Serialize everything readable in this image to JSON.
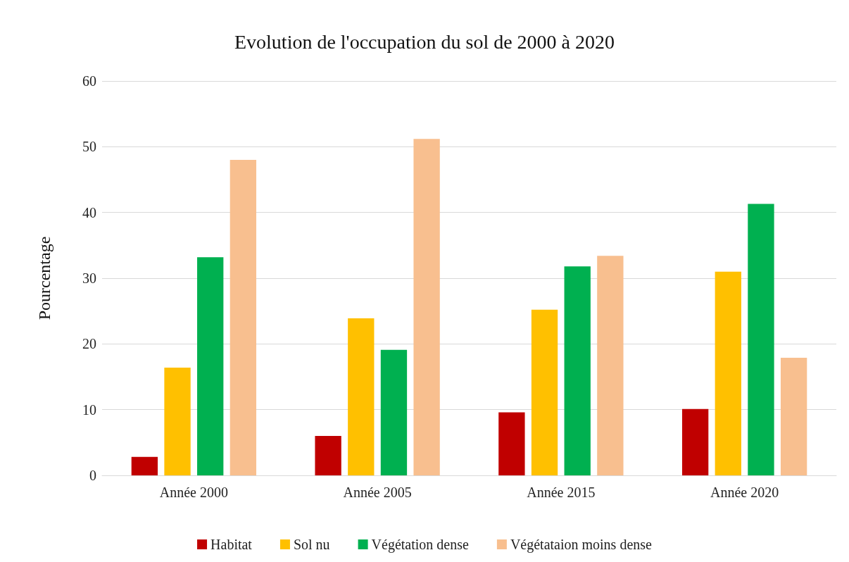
{
  "chart_data": {
    "type": "bar",
    "title": "Evolution de l'occupation du sol de 2000 à 2020",
    "ylabel": "Pourcentage",
    "categories": [
      "Année 2000",
      "Année 2005",
      "Année 2015",
      "Année 2020"
    ],
    "series": [
      {
        "name": "Habitat",
        "color": "#c00000",
        "values": [
          2.8,
          6.0,
          9.6,
          10.1
        ]
      },
      {
        "name": "Sol nu",
        "color": "#ffc000",
        "values": [
          16.4,
          23.9,
          25.2,
          31.0
        ]
      },
      {
        "name": "Végétation dense",
        "color": "#00b050",
        "values": [
          33.2,
          19.1,
          31.8,
          41.3
        ]
      },
      {
        "name": "Végétataion moins dense",
        "color": "#f8bf8f",
        "values": [
          48.0,
          51.2,
          33.4,
          17.9
        ]
      }
    ],
    "ylim": [
      0,
      60
    ],
    "yticks": [
      0,
      10,
      20,
      30,
      40,
      50,
      60
    ],
    "grid": "y",
    "legend": "bottom"
  }
}
